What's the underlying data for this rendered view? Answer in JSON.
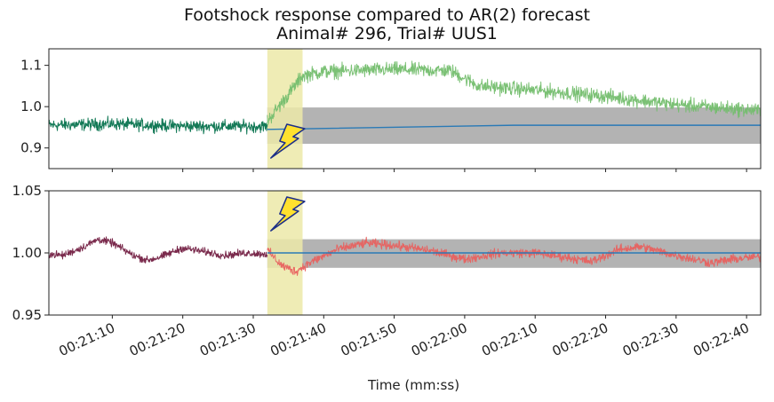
{
  "title": "Footshock response compared to AR(2) forecast",
  "subtitle": "Animal# 296, Trial# UUS1",
  "colors": {
    "top_pre": "#147a57",
    "top_post": "#74be6e",
    "bottom_pre": "#7a2a4c",
    "bottom_post": "#e8615f",
    "forecast_line": "#2a7ab6",
    "confidence_band": "#9a9a9a",
    "shock_window": "#ece9a8",
    "lightning": "#ffe12e"
  },
  "icons": {
    "shock_marker": "lightning-bolt-icon"
  },
  "chart_data": [
    {
      "type": "line",
      "panel": "top",
      "title": "Footshock response compared to AR(2) forecast",
      "subtitle": "Animal# 296, Trial# UUS1",
      "xlabel": "",
      "ylabel": "",
      "xlim_s": [
        1261,
        1362
      ],
      "ylim": [
        0.85,
        1.14
      ],
      "yticks": [
        0.9,
        1.0,
        1.1
      ],
      "ytick_labels": [
        "0.9",
        "1.0",
        "1.1"
      ],
      "shock_window_s": [
        1292,
        1297
      ],
      "series": [
        {
          "role": "signal_pre_shock",
          "x_range_s": [
            1261,
            1292
          ],
          "keypoints": [
            [
              1261,
              0.955
            ],
            [
              1270,
              0.958
            ],
            [
              1280,
              0.953
            ],
            [
              1292,
              0.952
            ]
          ],
          "noise": 0.012
        },
        {
          "role": "signal_post_shock",
          "x_range_s": [
            1292,
            1362
          ],
          "keypoints": [
            [
              1292,
              0.965
            ],
            [
              1295,
              1.03
            ],
            [
              1297,
              1.075
            ],
            [
              1300,
              1.085
            ],
            [
              1310,
              1.09
            ],
            [
              1318,
              1.087
            ],
            [
              1322,
              1.05
            ],
            [
              1330,
              1.04
            ],
            [
              1340,
              1.025
            ],
            [
              1350,
              1.005
            ],
            [
              1362,
              0.99
            ]
          ],
          "noise": 0.014
        },
        {
          "role": "ar2_forecast",
          "x_range_s": [
            1292,
            1362
          ],
          "keypoints": [
            [
              1292,
              0.945
            ],
            [
              1295,
              0.955
            ],
            [
              1362,
              0.955
            ]
          ]
        }
      ],
      "band": {
        "x_range_s": [
          1292,
          1362
        ],
        "lower": 0.91,
        "upper": 0.998
      }
    },
    {
      "type": "line",
      "panel": "bottom",
      "xlabel": "Time (mm:ss)",
      "ylabel": "",
      "xlim_s": [
        1261,
        1362
      ],
      "ylim": [
        0.95,
        1.05
      ],
      "yticks": [
        0.95,
        1.0,
        1.05
      ],
      "ytick_labels": [
        "0.95",
        "1.00",
        "1.05"
      ],
      "shock_window_s": [
        1292,
        1297
      ],
      "series": [
        {
          "role": "signal_pre_shock",
          "x_range_s": [
            1261,
            1292
          ],
          "keypoints": [
            [
              1261,
              0.999
            ],
            [
              1263,
              0.998
            ],
            [
              1266,
              1.005
            ],
            [
              1268,
              1.011
            ],
            [
              1270,
              1.008
            ],
            [
              1273,
              0.998
            ],
            [
              1275,
              0.994
            ],
            [
              1277,
              0.997
            ],
            [
              1280,
              1.004
            ],
            [
              1283,
              1.001
            ],
            [
              1286,
              0.998
            ],
            [
              1289,
              1.0
            ],
            [
              1292,
              0.999
            ]
          ],
          "noise": 0.0025
        },
        {
          "role": "signal_post_shock",
          "x_range_s": [
            1292,
            1362
          ],
          "keypoints": [
            [
              1292,
              1.002
            ],
            [
              1294,
              0.99
            ],
            [
              1296,
              0.985
            ],
            [
              1298,
              0.992
            ],
            [
              1302,
              1.003
            ],
            [
              1306,
              1.008
            ],
            [
              1310,
              1.006
            ],
            [
              1315,
              1.002
            ],
            [
              1320,
              0.995
            ],
            [
              1325,
              1.0
            ],
            [
              1330,
              1.0
            ],
            [
              1335,
              0.996
            ],
            [
              1338,
              0.993
            ],
            [
              1342,
              1.003
            ],
            [
              1345,
              1.005
            ],
            [
              1350,
              0.998
            ],
            [
              1355,
              0.992
            ],
            [
              1358,
              0.995
            ],
            [
              1362,
              0.997
            ]
          ],
          "noise": 0.003
        },
        {
          "role": "ar2_forecast",
          "x_range_s": [
            1292,
            1362
          ],
          "keypoints": [
            [
              1292,
              1.0
            ],
            [
              1362,
              1.0
            ]
          ]
        }
      ],
      "band": {
        "x_range_s": [
          1292,
          1362
        ],
        "lower": 0.988,
        "upper": 1.011
      },
      "xticks_s": [
        1270,
        1280,
        1290,
        1300,
        1310,
        1320,
        1330,
        1340,
        1350,
        1360
      ],
      "xtick_labels": [
        "00:21:10",
        "00:21:20",
        "00:21:30",
        "00:21:40",
        "00:21:50",
        "00:22:00",
        "00:22:10",
        "00:22:20",
        "00:22:30",
        "00:22:40"
      ]
    }
  ]
}
